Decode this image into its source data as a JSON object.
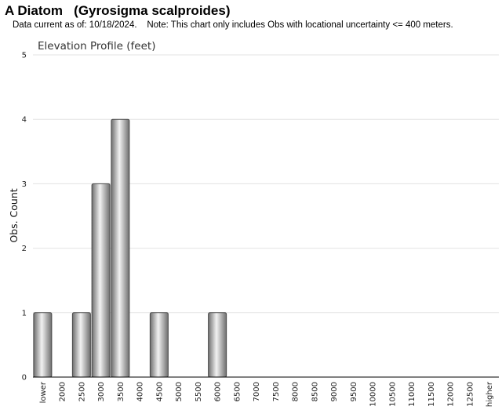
{
  "header": {
    "title": "A Diatom   (Gyrosigma scalproides)",
    "note": "Data current as of: 10/18/2024.    Note: This chart only includes Obs with locational uncertainty <= 400 meters."
  },
  "colors": {
    "bar_light": "#f2f2f2",
    "bar_dark": "#6e6e6e",
    "bar_stroke": "#4a4a4a",
    "grid": "#e3e3e3",
    "axis": "#000000"
  },
  "chart_data": {
    "type": "bar",
    "title": "Elevation Profile (feet)",
    "xlabel": "",
    "ylabel": "Obs. Count",
    "ylim": [
      0,
      5
    ],
    "yticks": [
      "0",
      "1",
      "2",
      "3",
      "4",
      "5"
    ],
    "grid": true,
    "legend": "none",
    "categories": [
      "lower",
      "2000",
      "2500",
      "3000",
      "3500",
      "4000",
      "4500",
      "5000",
      "5500",
      "6000",
      "6500",
      "7000",
      "7500",
      "8000",
      "8500",
      "9000",
      "9500",
      "10000",
      "10500",
      "11000",
      "11500",
      "12000",
      "12500",
      "higher"
    ],
    "values": [
      1,
      0,
      1,
      3,
      4,
      0,
      1,
      0,
      0,
      1,
      0,
      0,
      0,
      0,
      0,
      0,
      0,
      0,
      0,
      0,
      0,
      0,
      0,
      0
    ]
  }
}
